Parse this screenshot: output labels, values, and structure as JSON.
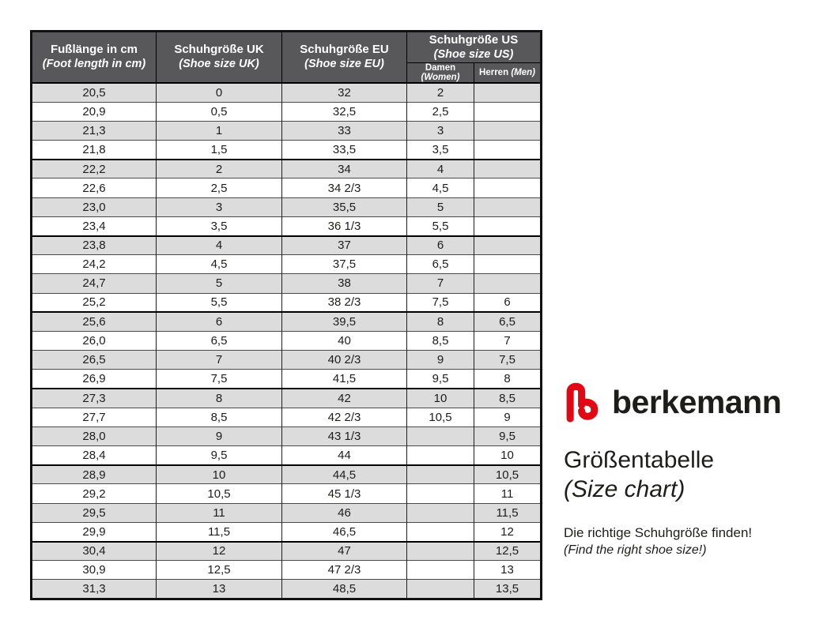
{
  "table": {
    "header": {
      "foot_length": {
        "de": "Fußlänge in cm",
        "en": "(Foot length in cm)"
      },
      "uk": {
        "de": "Schuhgröße UK",
        "en": "(Shoe size UK)"
      },
      "eu": {
        "de": "Schuhgröße EU",
        "en": "(Shoe size EU)"
      },
      "us": {
        "de": "Schuhgröße US",
        "en": "(Shoe size US)"
      },
      "us_women": {
        "de": "Damen",
        "en": "(Women)"
      },
      "us_men": {
        "de": "Herren",
        "en": "(Men)"
      }
    },
    "rows": [
      [
        "20,5",
        "0",
        "32",
        "2",
        ""
      ],
      [
        "20,9",
        "0,5",
        "32,5",
        "2,5",
        ""
      ],
      [
        "21,3",
        "1",
        "33",
        "3",
        ""
      ],
      [
        "21,8",
        "1,5",
        "33,5",
        "3,5",
        ""
      ],
      [
        "22,2",
        "2",
        "34",
        "4",
        ""
      ],
      [
        "22,6",
        "2,5",
        "34 2/3",
        "4,5",
        ""
      ],
      [
        "23,0",
        "3",
        "35,5",
        "5",
        ""
      ],
      [
        "23,4",
        "3,5",
        "36 1/3",
        "5,5",
        ""
      ],
      [
        "23,8",
        "4",
        "37",
        "6",
        ""
      ],
      [
        "24,2",
        "4,5",
        "37,5",
        "6,5",
        ""
      ],
      [
        "24,7",
        "5",
        "38",
        "7",
        ""
      ],
      [
        "25,2",
        "5,5",
        "38 2/3",
        "7,5",
        "6"
      ],
      [
        "25,6",
        "6",
        "39,5",
        "8",
        "6,5"
      ],
      [
        "26,0",
        "6,5",
        "40",
        "8,5",
        "7"
      ],
      [
        "26,5",
        "7",
        "40 2/3",
        "9",
        "7,5"
      ],
      [
        "26,9",
        "7,5",
        "41,5",
        "9,5",
        "8"
      ],
      [
        "27,3",
        "8",
        "42",
        "10",
        "8,5"
      ],
      [
        "27,7",
        "8,5",
        "42 2/3",
        "10,5",
        "9"
      ],
      [
        "28,0",
        "9",
        "43 1/3",
        "",
        "9,5"
      ],
      [
        "28,4",
        "9,5",
        "44",
        "",
        "10"
      ],
      [
        "28,9",
        "10",
        "44,5",
        "",
        "10,5"
      ],
      [
        "29,2",
        "10,5",
        "45 1/3",
        "",
        "11"
      ],
      [
        "29,5",
        "11",
        "46",
        "",
        "11,5"
      ],
      [
        "29,9",
        "11,5",
        "46,5",
        "",
        "12"
      ],
      [
        "30,4",
        "12",
        "47",
        "",
        "12,5"
      ],
      [
        "30,9",
        "12,5",
        "47 2/3",
        "",
        "13"
      ],
      [
        "31,3",
        "13",
        "48,5",
        "",
        "13,5"
      ]
    ]
  },
  "branding": {
    "logo_text": "berkemann",
    "logo_color": "#e30613",
    "title_de": "Größentabelle",
    "title_en": "(Size chart)",
    "tagline_de": "Die richtige Schuhgröße finden!",
    "tagline_en": "(Find the right shoe size!)"
  },
  "colors": {
    "header_bg": "#58585a",
    "row_stripe": "#dcdcdd",
    "border": "#000000",
    "text": "#1d1d1b"
  }
}
